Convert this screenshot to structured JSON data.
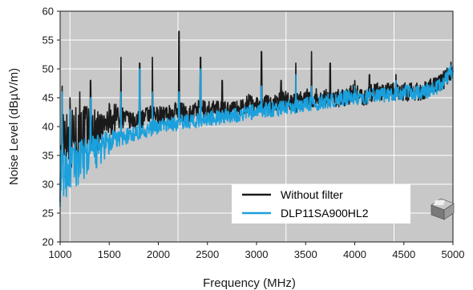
{
  "chart_data": {
    "type": "line",
    "title": "",
    "xlabel": "Frequency (MHz)",
    "ylabel": "Noise Level (dBµV/m)",
    "xlim": [
      1000,
      5000
    ],
    "ylim": [
      20,
      60
    ],
    "x_ticks": [
      1000,
      1500,
      2000,
      2500,
      3000,
      3500,
      4000,
      4500,
      5000
    ],
    "y_ticks": [
      20,
      25,
      30,
      35,
      40,
      45,
      50,
      55,
      60
    ],
    "grid": {
      "horizontal": true,
      "vertical_at": [
        1100,
        2200,
        3300,
        4400
      ]
    },
    "legend_position": "bottom-right",
    "colors": {
      "plot_background": "#c8c8c8",
      "grid": "#ffffff"
    },
    "series": [
      {
        "name": "Without filter",
        "color": "#1a1a1a",
        "x": [
          1000,
          1050,
          1100,
          1200,
          1300,
          1400,
          1500,
          1600,
          1700,
          1800,
          1900,
          2000,
          2100,
          2200,
          2300,
          2400,
          2500,
          2600,
          2700,
          2800,
          2900,
          3000,
          3100,
          3200,
          3300,
          3400,
          3500,
          3600,
          3700,
          3800,
          3900,
          4000,
          4100,
          4200,
          4300,
          4400,
          4500,
          4600,
          4700,
          4800,
          4900,
          5000
        ],
        "y": [
          33,
          40,
          38,
          39,
          40,
          39,
          41,
          42,
          41,
          41,
          42,
          42,
          42,
          43,
          42,
          43,
          43,
          43,
          43,
          43,
          44,
          44,
          44,
          44,
          45,
          44,
          45,
          45,
          45,
          45,
          45,
          46,
          45,
          46,
          46,
          46,
          46,
          46,
          46,
          47,
          48,
          50
        ],
        "peaks": [
          {
            "x": 1020,
            "y": 47
          },
          {
            "x": 1100,
            "y": 45
          },
          {
            "x": 1200,
            "y": 46
          },
          {
            "x": 1310,
            "y": 48
          },
          {
            "x": 1400,
            "y": 42
          },
          {
            "x": 1500,
            "y": 44
          },
          {
            "x": 1620,
            "y": 52
          },
          {
            "x": 1810,
            "y": 51
          },
          {
            "x": 1940,
            "y": 52
          },
          {
            "x": 2210,
            "y": 56.5
          },
          {
            "x": 2430,
            "y": 52
          },
          {
            "x": 2650,
            "y": 48
          },
          {
            "x": 3050,
            "y": 53
          },
          {
            "x": 3250,
            "y": 48
          },
          {
            "x": 3400,
            "y": 51
          },
          {
            "x": 3560,
            "y": 53
          },
          {
            "x": 3750,
            "y": 51
          },
          {
            "x": 4000,
            "y": 48
          },
          {
            "x": 4150,
            "y": 49
          },
          {
            "x": 4420,
            "y": 49
          },
          {
            "x": 4800,
            "y": 48
          }
        ]
      },
      {
        "name": "DLP11SA900HL2",
        "color": "#1aa0dc",
        "x": [
          1000,
          1050,
          1100,
          1200,
          1300,
          1400,
          1500,
          1600,
          1700,
          1800,
          1900,
          2000,
          2100,
          2200,
          2300,
          2400,
          2500,
          2600,
          2700,
          2800,
          2900,
          3000,
          3100,
          3200,
          3300,
          3400,
          3500,
          3600,
          3700,
          3800,
          3900,
          4000,
          4100,
          4200,
          4300,
          4400,
          4500,
          4600,
          4700,
          4800,
          4900,
          5000
        ],
        "y": [
          31,
          32,
          33,
          34,
          35,
          36,
          37,
          38,
          38.5,
          39,
          39.5,
          40,
          40.5,
          40.5,
          41,
          41,
          41.5,
          41.5,
          42,
          42,
          42.5,
          42.5,
          43,
          43,
          43.5,
          43.5,
          44,
          44,
          44.5,
          44.5,
          45,
          45,
          45,
          45.5,
          45.5,
          45.5,
          46,
          46,
          46,
          46.5,
          47.5,
          50
        ],
        "peaks": [
          {
            "x": 1020,
            "y": 46
          },
          {
            "x": 1100,
            "y": 43
          },
          {
            "x": 1310,
            "y": 45
          },
          {
            "x": 1620,
            "y": 46
          },
          {
            "x": 1810,
            "y": 50
          },
          {
            "x": 1940,
            "y": 46
          },
          {
            "x": 2210,
            "y": 46
          },
          {
            "x": 2430,
            "y": 50
          },
          {
            "x": 3050,
            "y": 47
          },
          {
            "x": 3400,
            "y": 49
          },
          {
            "x": 3560,
            "y": 47
          },
          {
            "x": 4000,
            "y": 47
          },
          {
            "x": 4420,
            "y": 48
          },
          {
            "x": 4850,
            "y": 48
          }
        ]
      }
    ]
  }
}
